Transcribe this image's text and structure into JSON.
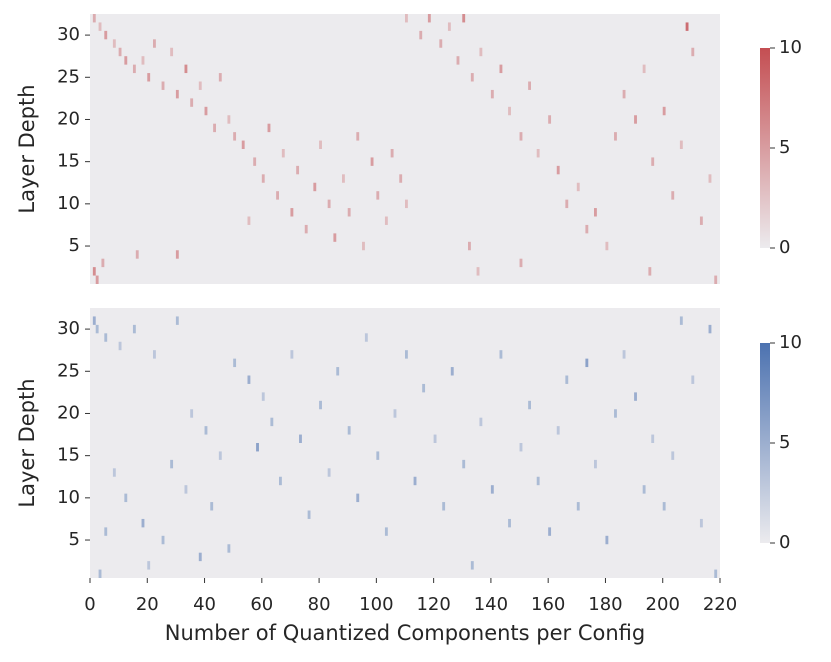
{
  "chart_data": [
    {
      "type": "heatmap",
      "ylabel": "Layer Depth",
      "color": "#c44e52",
      "background": "#ecebee",
      "xlim": [
        0,
        220
      ],
      "ylim": [
        0.5,
        32.5
      ],
      "yticks": [
        5,
        10,
        15,
        20,
        25,
        30
      ],
      "clim": [
        0,
        10
      ],
      "cticks": [
        0,
        5,
        10
      ],
      "x": [
        1,
        3,
        5,
        8,
        10,
        12,
        15,
        18,
        20,
        22,
        25,
        28,
        30,
        33,
        35,
        38,
        40,
        43,
        45,
        48,
        50,
        53,
        55,
        57,
        60,
        62,
        65,
        67,
        70,
        72,
        75,
        78,
        80,
        83,
        85,
        88,
        90,
        93,
        95,
        98,
        100,
        103,
        105,
        108,
        110,
        1,
        2,
        4,
        16,
        30,
        110,
        115,
        118,
        122,
        125,
        128,
        130,
        133,
        136,
        140,
        143,
        146,
        150,
        153,
        156,
        160,
        163,
        166,
        170,
        173,
        176,
        180,
        183,
        186,
        190,
        193,
        196,
        200,
        203,
        206,
        208,
        210,
        213,
        216,
        218,
        132,
        135,
        150,
        195
      ],
      "y": [
        32,
        31,
        30,
        29,
        28,
        27,
        26,
        27,
        25,
        29,
        24,
        28,
        23,
        26,
        22,
        24,
        21,
        19,
        25,
        20,
        18,
        17,
        8,
        15,
        13,
        19,
        11,
        16,
        9,
        14,
        7,
        12,
        17,
        10,
        6,
        13,
        9,
        18,
        5,
        15,
        11,
        8,
        16,
        13,
        10,
        2,
        1,
        3,
        4,
        4,
        32,
        30,
        32,
        29,
        31,
        27,
        32,
        25,
        28,
        23,
        26,
        21,
        18,
        24,
        16,
        20,
        14,
        10,
        12,
        7,
        9,
        5,
        18,
        23,
        20,
        26,
        15,
        21,
        11,
        17,
        31,
        28,
        8,
        13,
        1,
        5,
        2,
        3,
        2
      ],
      "values": [
        4,
        3,
        5,
        3,
        4,
        5,
        4,
        3,
        5,
        4,
        4,
        3,
        5,
        6,
        4,
        3,
        5,
        4,
        4,
        3,
        4,
        5,
        3,
        4,
        4,
        5,
        4,
        3,
        5,
        4,
        4,
        5,
        3,
        4,
        5,
        3,
        4,
        4,
        3,
        5,
        4,
        3,
        4,
        4,
        3,
        6,
        5,
        4,
        4,
        5,
        3,
        4,
        5,
        4,
        3,
        4,
        6,
        4,
        3,
        4,
        5,
        3,
        4,
        4,
        3,
        4,
        5,
        4,
        3,
        4,
        5,
        3,
        4,
        4,
        5,
        3,
        4,
        5,
        4,
        3,
        8,
        4,
        4,
        3,
        4,
        4,
        3,
        4,
        4
      ]
    },
    {
      "type": "heatmap",
      "ylabel": "Layer Depth",
      "xlabel": "Number of Quantized Components per Config",
      "color": "#4c72b0",
      "background": "#ecebee",
      "xlim": [
        0,
        220
      ],
      "ylim": [
        0.5,
        32.5
      ],
      "xticks": [
        0,
        20,
        40,
        60,
        80,
        100,
        120,
        140,
        160,
        180,
        200,
        220
      ],
      "yticks": [
        5,
        10,
        15,
        20,
        25,
        30
      ],
      "clim": [
        0,
        10
      ],
      "cticks": [
        0,
        5,
        10
      ],
      "x": [
        1,
        2,
        5,
        10,
        15,
        22,
        30,
        35,
        40,
        12,
        8,
        5,
        18,
        25,
        3,
        20,
        28,
        33,
        38,
        42,
        45,
        48,
        50,
        55,
        58,
        60,
        63,
        66,
        70,
        73,
        76,
        80,
        83,
        86,
        90,
        93,
        96,
        100,
        103,
        106,
        110,
        113,
        116,
        120,
        123,
        126,
        130,
        133,
        136,
        140,
        143,
        146,
        150,
        153,
        156,
        160,
        163,
        166,
        170,
        173,
        176,
        180,
        183,
        186,
        190,
        193,
        196,
        200,
        203,
        206,
        210,
        213,
        216,
        218
      ],
      "y": [
        31,
        30,
        29,
        28,
        30,
        27,
        31,
        20,
        18,
        10,
        13,
        6,
        7,
        5,
        1,
        2,
        14,
        11,
        3,
        9,
        15,
        4,
        26,
        24,
        16,
        22,
        19,
        12,
        27,
        17,
        8,
        21,
        13,
        25,
        18,
        10,
        29,
        15,
        6,
        20,
        27,
        12,
        23,
        17,
        9,
        25,
        14,
        2,
        19,
        11,
        27,
        7,
        16,
        21,
        12,
        6,
        18,
        24,
        9,
        26,
        14,
        5,
        20,
        27,
        22,
        11,
        17,
        9,
        15,
        31,
        24,
        7,
        30,
        1
      ],
      "values": [
        5,
        4,
        4,
        3,
        4,
        3,
        4,
        3,
        4,
        4,
        3,
        4,
        5,
        4,
        4,
        3,
        4,
        3,
        5,
        4,
        3,
        4,
        4,
        5,
        6,
        3,
        4,
        4,
        3,
        5,
        4,
        4,
        3,
        4,
        4,
        5,
        3,
        4,
        4,
        3,
        4,
        5,
        4,
        3,
        4,
        5,
        4,
        4,
        3,
        5,
        4,
        4,
        3,
        4,
        4,
        5,
        3,
        4,
        4,
        6,
        3,
        5,
        4,
        3,
        5,
        4,
        3,
        4,
        3,
        4,
        3,
        3,
        5,
        4
      ]
    }
  ]
}
